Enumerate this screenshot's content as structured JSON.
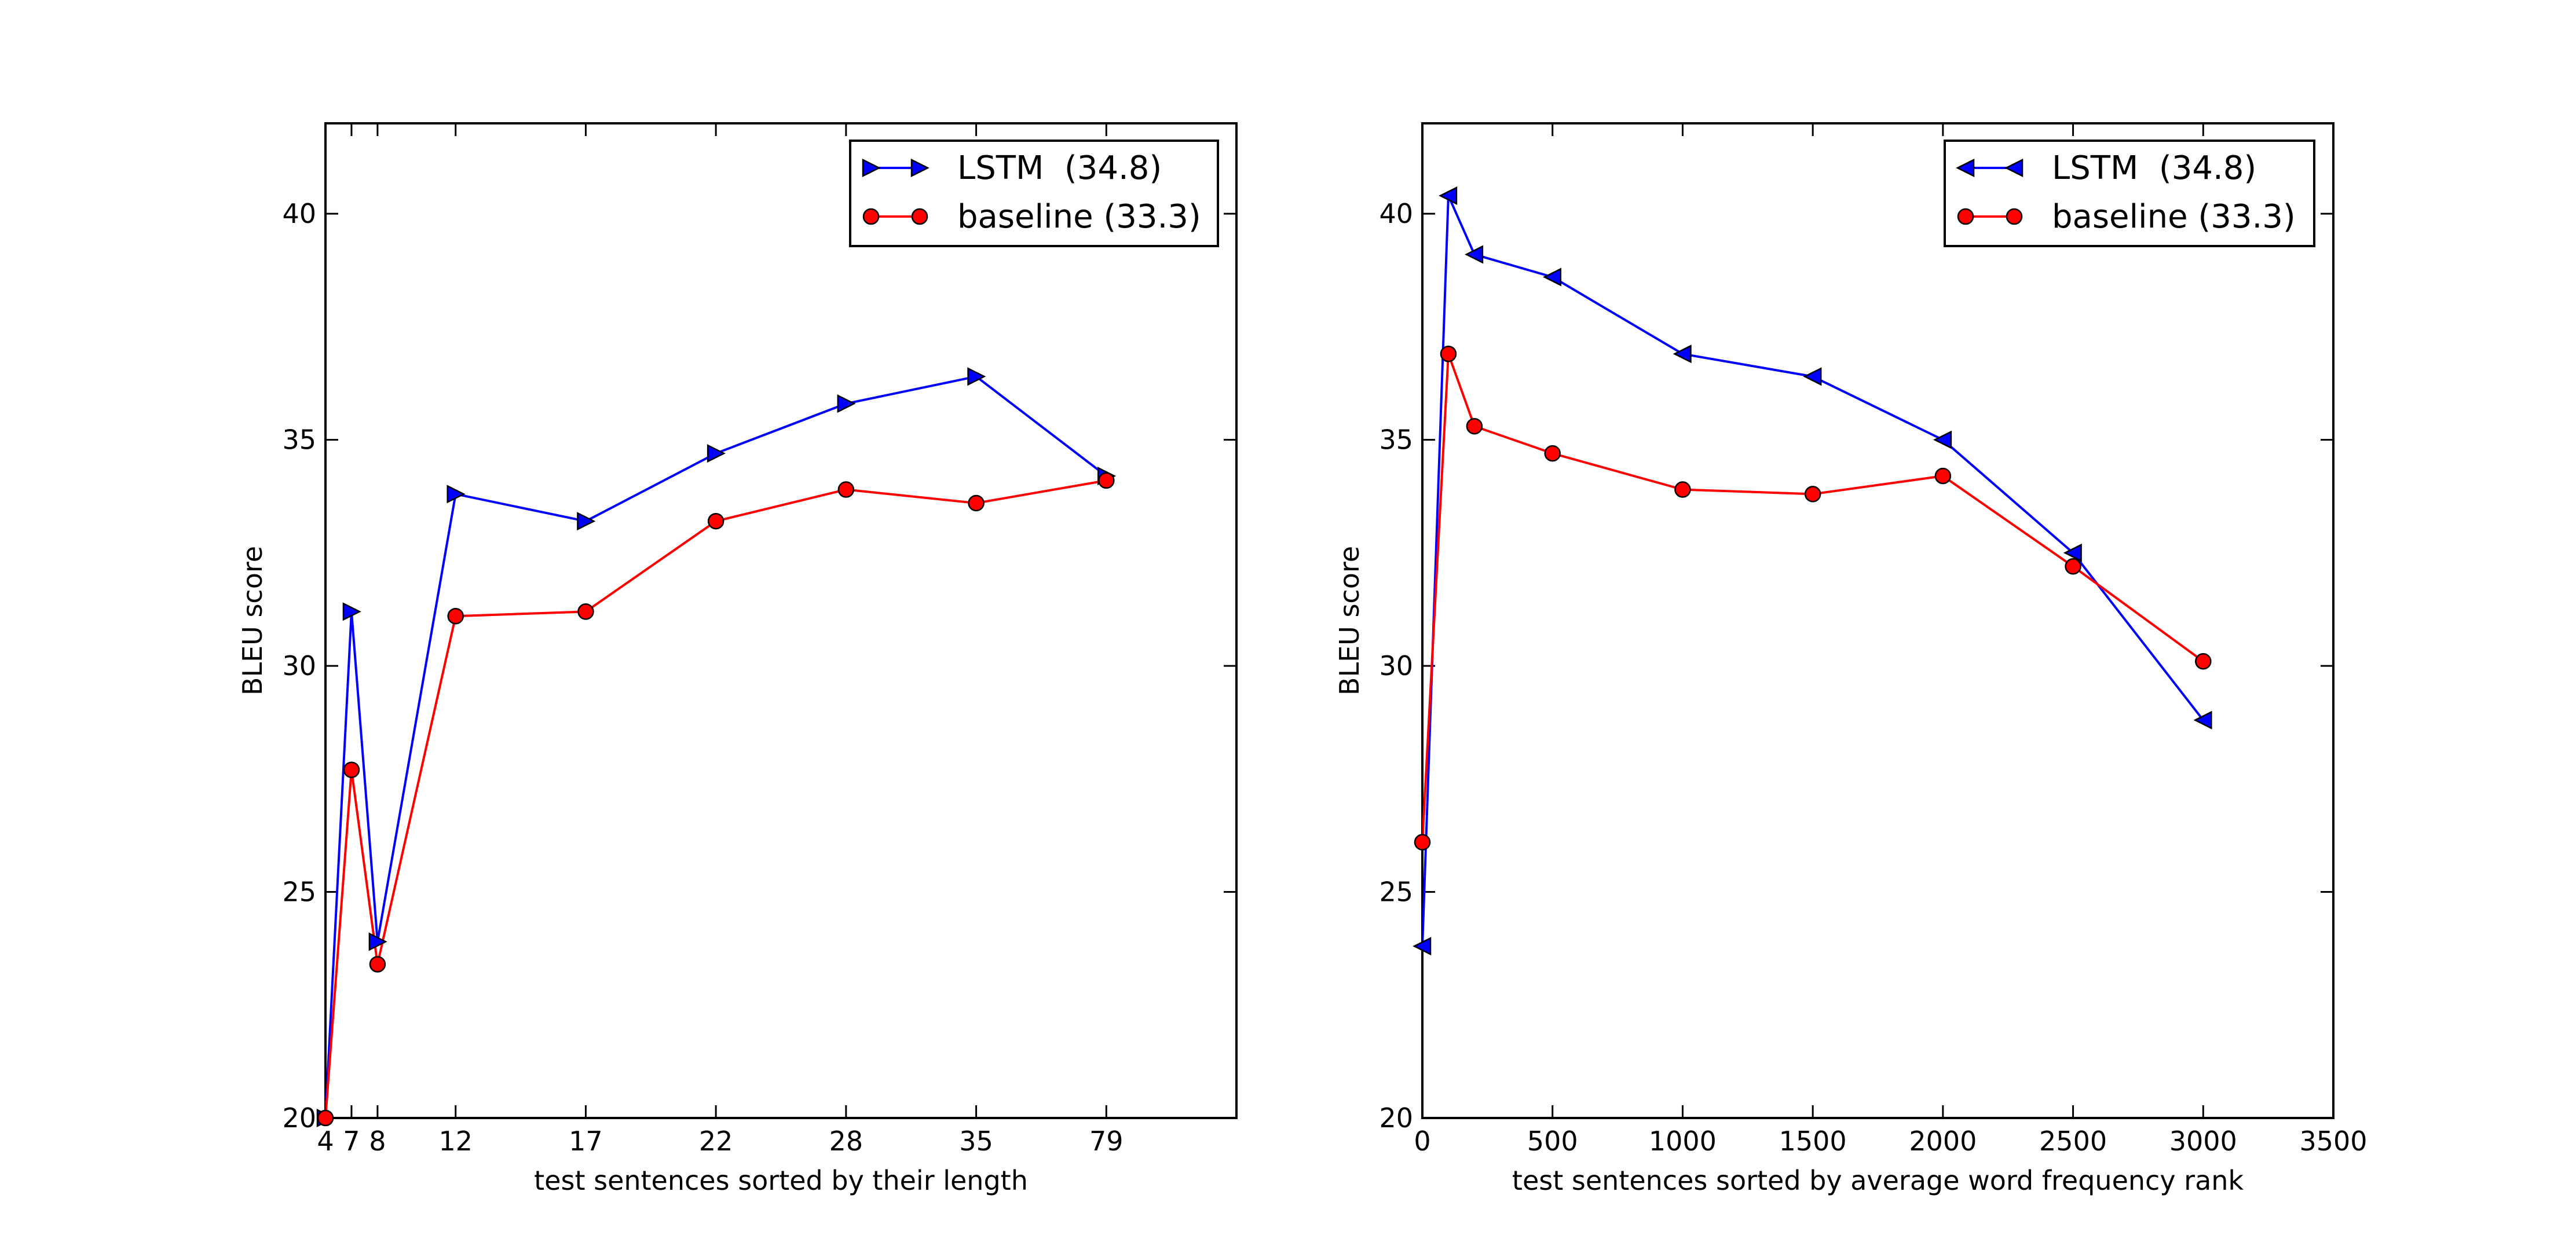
{
  "chart_data": [
    {
      "type": "line",
      "xlabel": "test sentences sorted by their length",
      "ylabel": "BLEU score",
      "ylim": [
        20,
        42
      ],
      "yticks": [
        20,
        25,
        30,
        35,
        40
      ],
      "x_axis_kind": "ordinal",
      "x_tick_labels": [
        "4",
        "7",
        "8",
        "12",
        "17",
        "22",
        "28",
        "35",
        "79"
      ],
      "x_positions": [
        0,
        1,
        2,
        5,
        10,
        15,
        20,
        25,
        30
      ],
      "xlim": [
        0,
        35
      ],
      "grid": false,
      "legend_position": "top-right",
      "series": [
        {
          "name": "LSTM  (34.8)",
          "color": "#0000ff",
          "marker": "triangle-right",
          "points": [
            [
              0,
              20.0
            ],
            [
              1,
              31.2
            ],
            [
              2,
              23.9
            ],
            [
              5,
              33.8
            ],
            [
              10,
              33.2
            ],
            [
              15,
              34.7
            ],
            [
              20,
              35.8
            ],
            [
              25,
              36.4
            ],
            [
              30,
              34.2
            ]
          ]
        },
        {
          "name": "baseline (33.3)",
          "color": "#ff0000",
          "marker": "circle",
          "points": [
            [
              0,
              20.0
            ],
            [
              1,
              27.7
            ],
            [
              2,
              23.4
            ],
            [
              5,
              31.1
            ],
            [
              10,
              31.2
            ],
            [
              15,
              33.2
            ],
            [
              20,
              33.9
            ],
            [
              25,
              33.6
            ],
            [
              30,
              34.1
            ]
          ]
        }
      ]
    },
    {
      "type": "line",
      "xlabel": "test sentences sorted by average word frequency rank",
      "ylabel": "BLEU score",
      "xlim": [
        0,
        3500
      ],
      "xticks": [
        0,
        500,
        1000,
        1500,
        2000,
        2500,
        3000,
        3500
      ],
      "ylim": [
        20,
        42
      ],
      "yticks": [
        20,
        25,
        30,
        35,
        40
      ],
      "grid": false,
      "legend_position": "top-right",
      "series": [
        {
          "name": "LSTM  (34.8)",
          "color": "#0000ff",
          "marker": "triangle-left",
          "points": [
            [
              0,
              23.8
            ],
            [
              100,
              40.4
            ],
            [
              200,
              39.1
            ],
            [
              500,
              38.6
            ],
            [
              1000,
              36.9
            ],
            [
              1500,
              36.4
            ],
            [
              2000,
              35.0
            ],
            [
              2500,
              32.5
            ],
            [
              3000,
              28.8
            ]
          ]
        },
        {
          "name": "baseline (33.3)",
          "color": "#ff0000",
          "marker": "circle",
          "points": [
            [
              0,
              26.1
            ],
            [
              100,
              36.9
            ],
            [
              200,
              35.3
            ],
            [
              500,
              34.7
            ],
            [
              1000,
              33.9
            ],
            [
              1500,
              33.8
            ],
            [
              2000,
              34.2
            ],
            [
              2500,
              32.2
            ],
            [
              3000,
              30.1
            ]
          ]
        }
      ]
    }
  ]
}
